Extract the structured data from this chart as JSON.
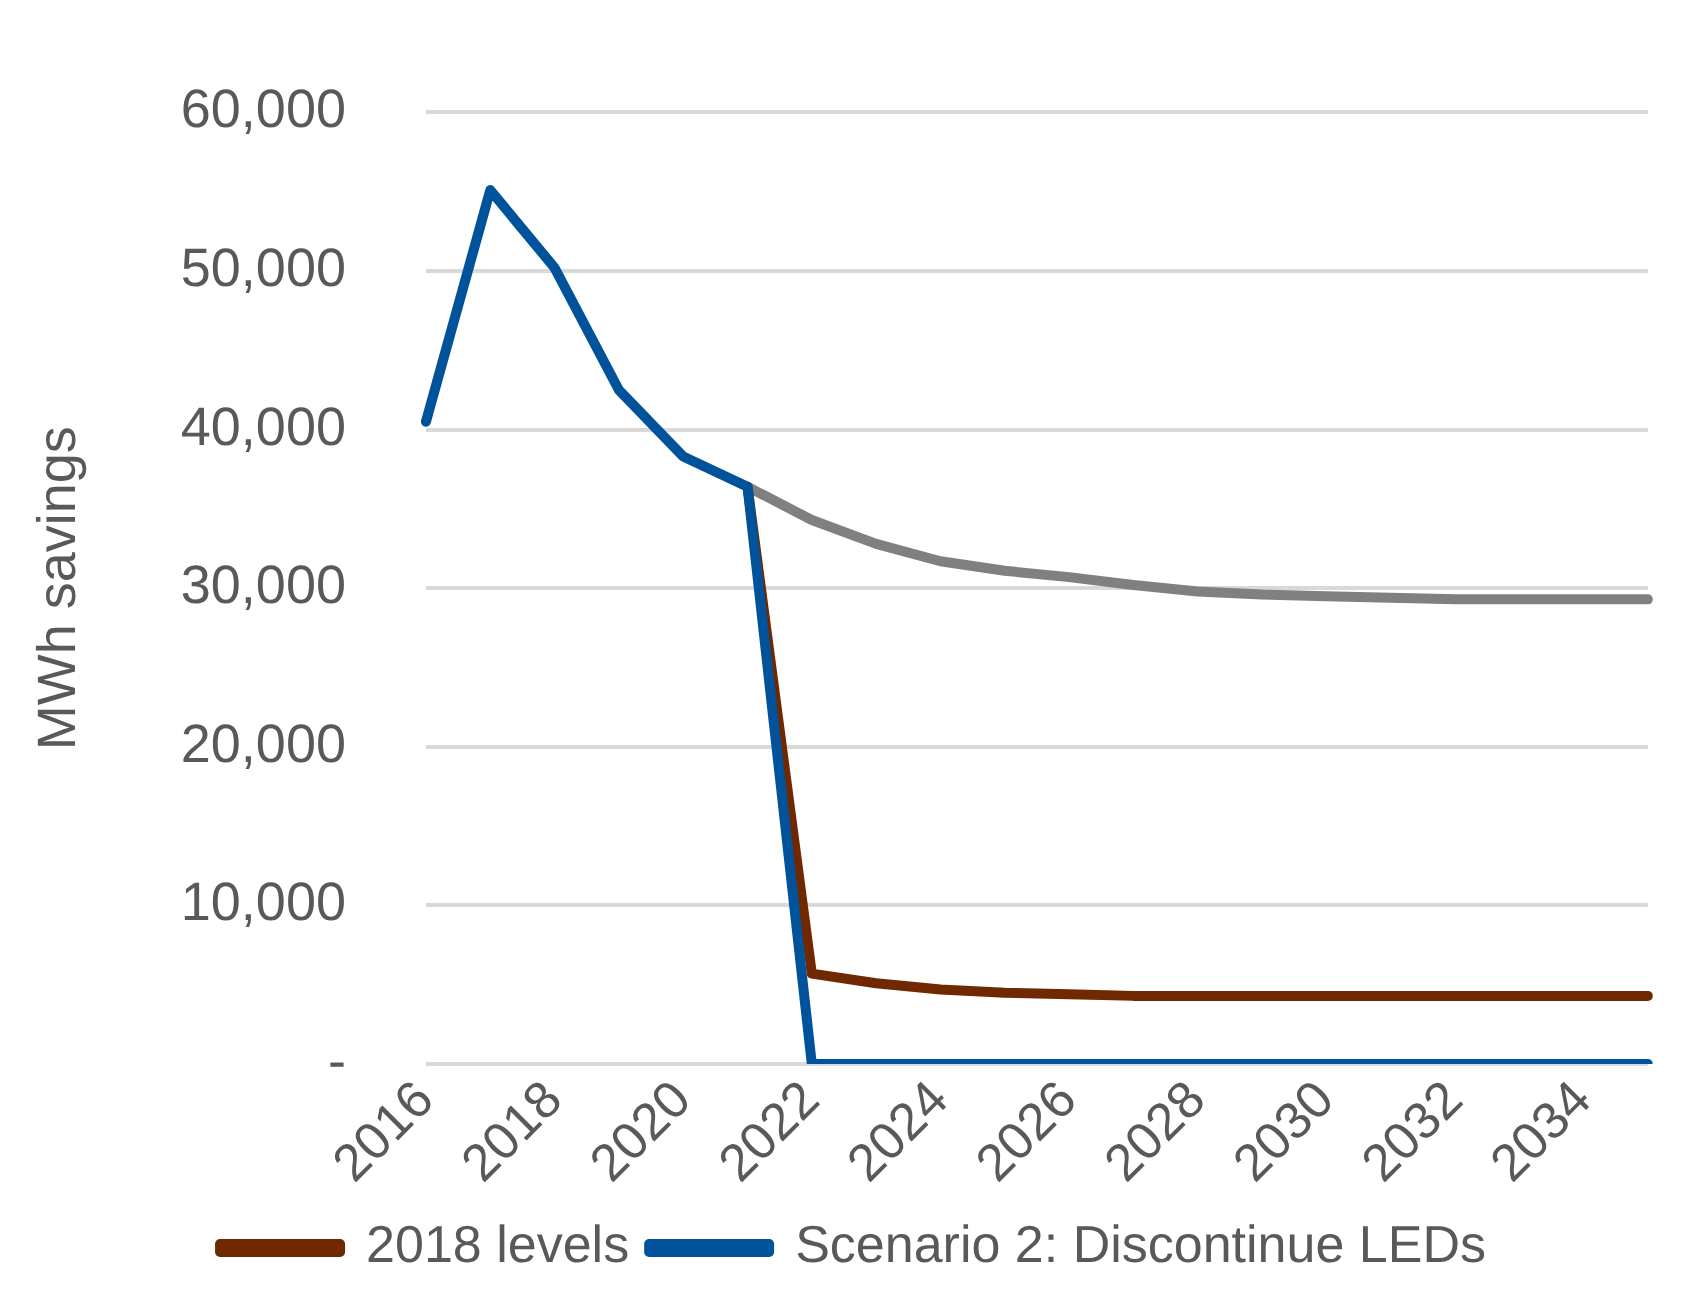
{
  "chart_data": {
    "type": "line",
    "ylabel": "MWh savings",
    "categories": [
      "2016",
      null,
      "2018",
      null,
      "2020",
      null,
      "2022",
      null,
      "2024",
      null,
      "2026",
      null,
      "2028",
      null,
      "2030",
      null,
      "2032",
      null,
      "2034",
      null
    ],
    "series": [
      {
        "color": "#808080",
        "values": [
          null,
          null,
          null,
          null,
          null,
          36400,
          34300,
          32800,
          31700,
          31100,
          30700,
          30200,
          29800,
          29600,
          29500,
          29400,
          29300,
          29300,
          29300,
          29300
        ]
      },
      {
        "name": "2018 levels",
        "color": "#702800",
        "values": [
          null,
          null,
          null,
          null,
          null,
          36400,
          5700,
          5100,
          4700,
          4500,
          4400,
          4300,
          4300,
          4300,
          4300,
          4300,
          4300,
          4300,
          4300,
          4300
        ]
      },
      {
        "name": "Scenario 2: Discontinue LEDs",
        "color": "#00539b",
        "values": [
          40500,
          55100,
          50200,
          42500,
          38300,
          36400,
          0,
          0,
          0,
          0,
          0,
          0,
          0,
          0,
          0,
          0,
          0,
          0,
          0,
          0
        ]
      }
    ],
    "ylim": [
      0,
      60000
    ],
    "yticks": [
      {
        "value": 0,
        "label": "-"
      },
      {
        "value": 10000,
        "label": "10,000"
      },
      {
        "value": 20000,
        "label": "20,000"
      },
      {
        "value": 30000,
        "label": "30,000"
      },
      {
        "value": 40000,
        "label": "40,000"
      },
      {
        "value": 50000,
        "label": "50,000"
      },
      {
        "value": 60000,
        "label": "60,000"
      }
    ],
    "grid": "y",
    "legend": "bottom",
    "marker": "none",
    "line_style": "solid"
  }
}
